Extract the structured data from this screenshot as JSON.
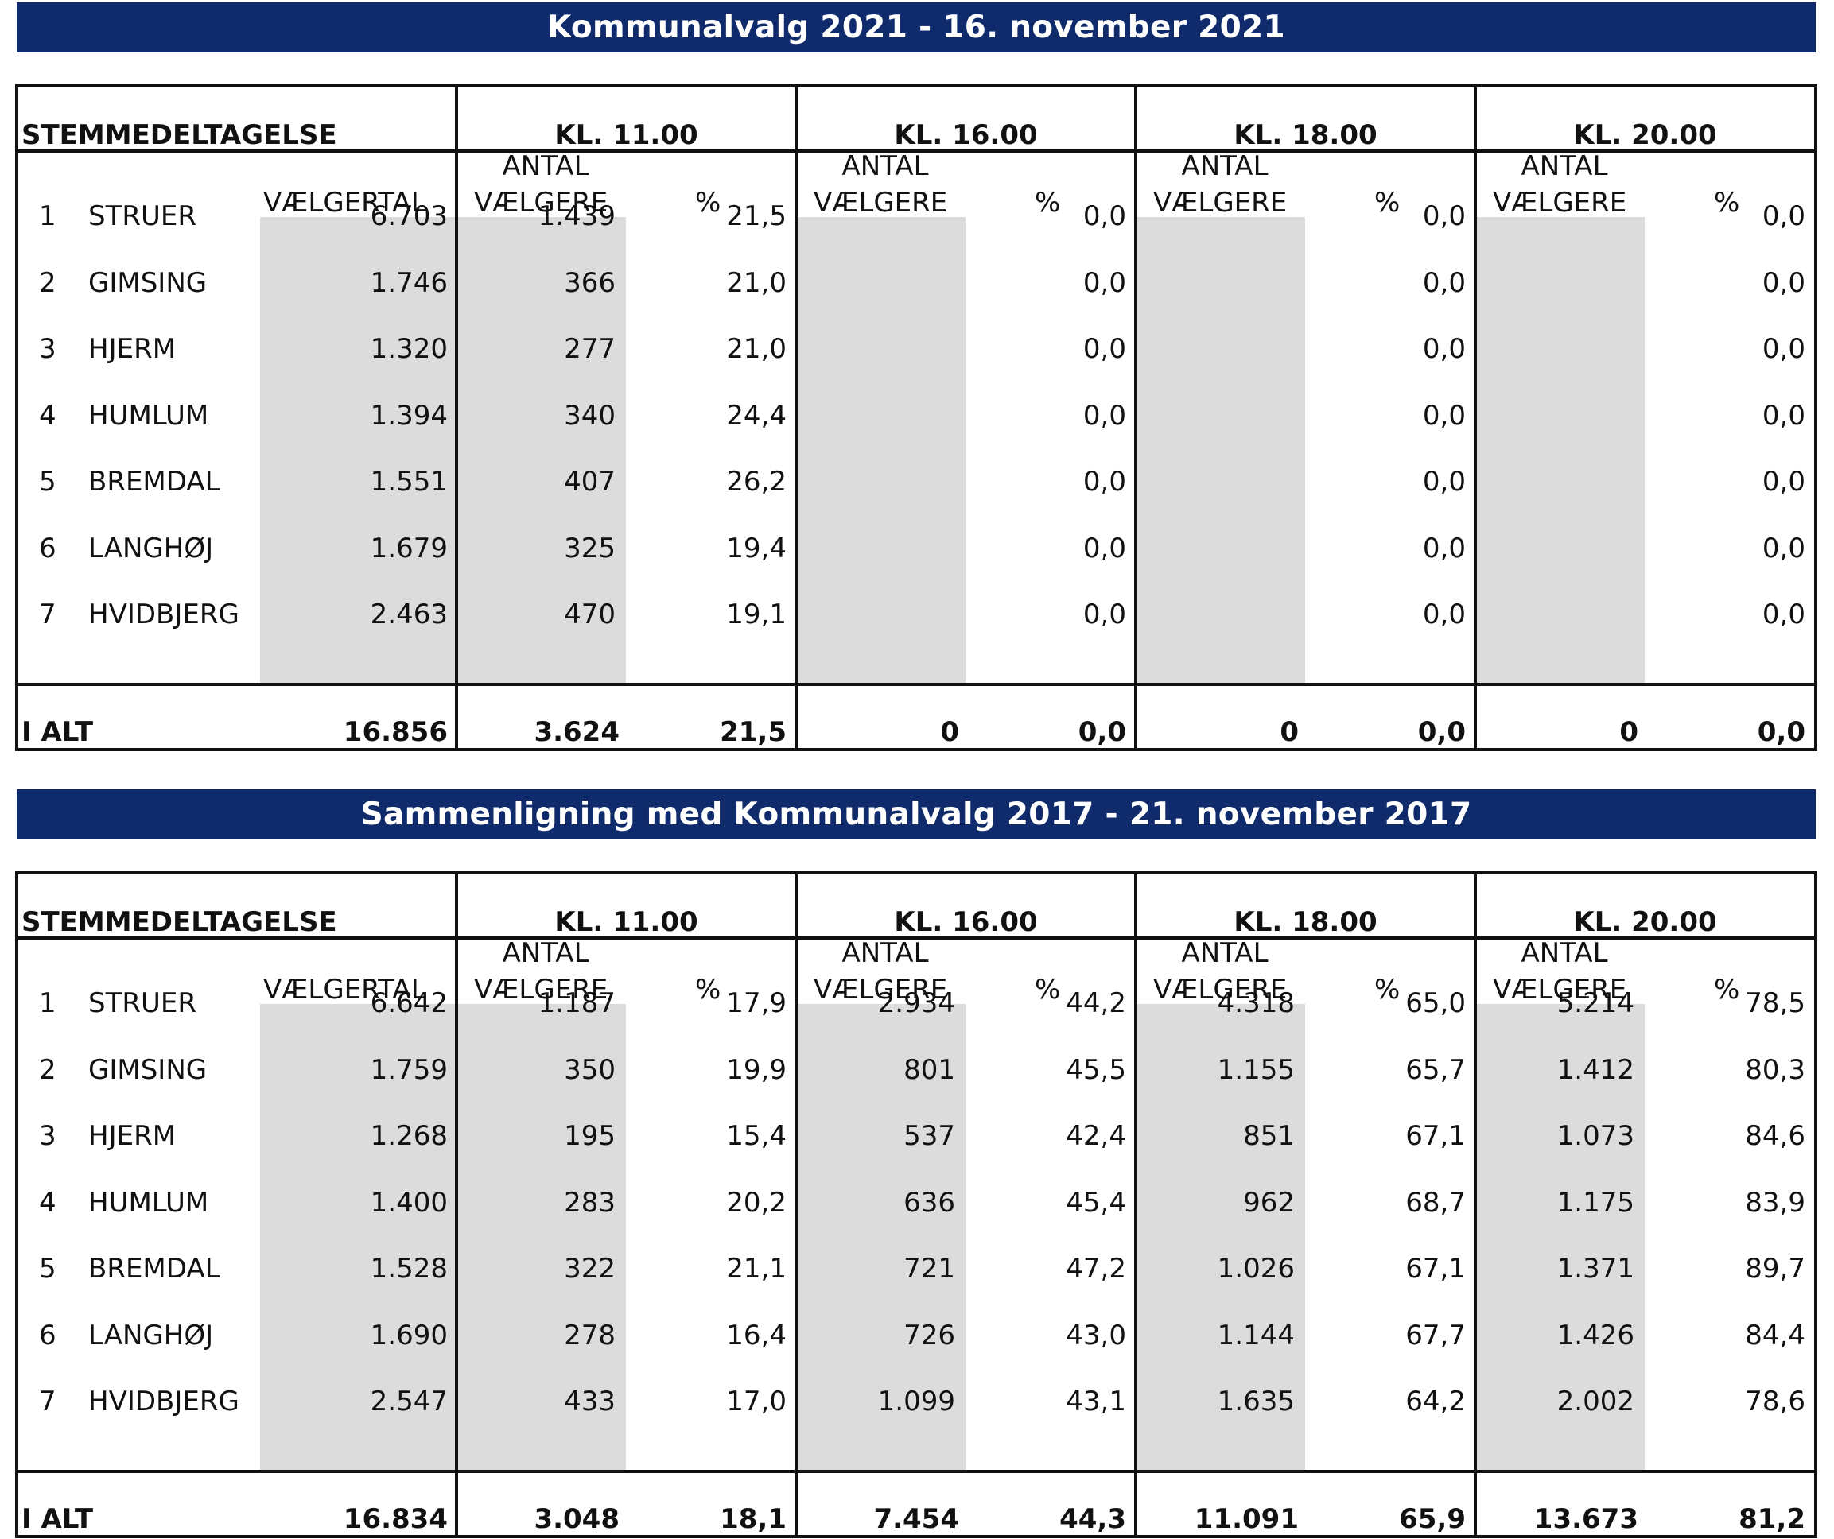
{
  "sections": [
    {
      "banner": "Kommunalvalg 2021 - 16. november 2021",
      "header": {
        "label": "STEMMEDELTAGELSE",
        "times": [
          "KL. 11.00",
          "KL. 16.00",
          "KL. 18.00",
          "KL. 20.00"
        ],
        "antal": "ANTAL",
        "vaelgere": "VÆLGERE",
        "pct": "%",
        "vaelgertal": "VÆLGERTAL"
      },
      "rows": [
        {
          "num": "1",
          "name": "STRUER",
          "vt": "6.703",
          "cols": [
            [
              "1.439",
              "21,5"
            ],
            [
              "",
              "0,0"
            ],
            [
              "",
              "0,0"
            ],
            [
              "",
              "0,0"
            ]
          ]
        },
        {
          "num": "2",
          "name": "GIMSING",
          "vt": "1.746",
          "cols": [
            [
              "366",
              "21,0"
            ],
            [
              "",
              "0,0"
            ],
            [
              "",
              "0,0"
            ],
            [
              "",
              "0,0"
            ]
          ]
        },
        {
          "num": "3",
          "name": "HJERM",
          "vt": "1.320",
          "cols": [
            [
              "277",
              "21,0"
            ],
            [
              "",
              "0,0"
            ],
            [
              "",
              "0,0"
            ],
            [
              "",
              "0,0"
            ]
          ]
        },
        {
          "num": "4",
          "name": "HUMLUM",
          "vt": "1.394",
          "cols": [
            [
              "340",
              "24,4"
            ],
            [
              "",
              "0,0"
            ],
            [
              "",
              "0,0"
            ],
            [
              "",
              "0,0"
            ]
          ]
        },
        {
          "num": "5",
          "name": "BREMDAL",
          "vt": "1.551",
          "cols": [
            [
              "407",
              "26,2"
            ],
            [
              "",
              "0,0"
            ],
            [
              "",
              "0,0"
            ],
            [
              "",
              "0,0"
            ]
          ]
        },
        {
          "num": "6",
          "name": "LANGHØJ",
          "vt": "1.679",
          "cols": [
            [
              "325",
              "19,4"
            ],
            [
              "",
              "0,0"
            ],
            [
              "",
              "0,0"
            ],
            [
              "",
              "0,0"
            ]
          ]
        },
        {
          "num": "7",
          "name": "HVIDBJERG",
          "vt": "2.463",
          "cols": [
            [
              "470",
              "19,1"
            ],
            [
              "",
              "0,0"
            ],
            [
              "",
              "0,0"
            ],
            [
              "",
              "0,0"
            ]
          ]
        }
      ],
      "total": {
        "label": "I ALT",
        "vt": "16.856",
        "cols": [
          [
            "3.624",
            "21,5"
          ],
          [
            "0",
            "0,0"
          ],
          [
            "0",
            "0,0"
          ],
          [
            "0",
            "0,0"
          ]
        ]
      }
    },
    {
      "banner": "Sammenligning med Kommunalvalg 2017 - 21. november 2017",
      "header": {
        "label": "STEMMEDELTAGELSE",
        "times": [
          "KL. 11.00",
          "KL. 16.00",
          "KL. 18.00",
          "KL. 20.00"
        ],
        "antal": "ANTAL",
        "vaelgere": "VÆLGERE",
        "pct": "%",
        "vaelgertal": "VÆLGERTAL"
      },
      "rows": [
        {
          "num": "1",
          "name": "STRUER",
          "vt": "6.642",
          "cols": [
            [
              "1.187",
              "17,9"
            ],
            [
              "2.934",
              "44,2"
            ],
            [
              "4.318",
              "65,0"
            ],
            [
              "5.214",
              "78,5"
            ]
          ]
        },
        {
          "num": "2",
          "name": "GIMSING",
          "vt": "1.759",
          "cols": [
            [
              "350",
              "19,9"
            ],
            [
              "801",
              "45,5"
            ],
            [
              "1.155",
              "65,7"
            ],
            [
              "1.412",
              "80,3"
            ]
          ]
        },
        {
          "num": "3",
          "name": "HJERM",
          "vt": "1.268",
          "cols": [
            [
              "195",
              "15,4"
            ],
            [
              "537",
              "42,4"
            ],
            [
              "851",
              "67,1"
            ],
            [
              "1.073",
              "84,6"
            ]
          ]
        },
        {
          "num": "4",
          "name": "HUMLUM",
          "vt": "1.400",
          "cols": [
            [
              "283",
              "20,2"
            ],
            [
              "636",
              "45,4"
            ],
            [
              "962",
              "68,7"
            ],
            [
              "1.175",
              "83,9"
            ]
          ]
        },
        {
          "num": "5",
          "name": "BREMDAL",
          "vt": "1.528",
          "cols": [
            [
              "322",
              "21,1"
            ],
            [
              "721",
              "47,2"
            ],
            [
              "1.026",
              "67,1"
            ],
            [
              "1.371",
              "89,7"
            ]
          ]
        },
        {
          "num": "6",
          "name": "LANGHØJ",
          "vt": "1.690",
          "cols": [
            [
              "278",
              "16,4"
            ],
            [
              "726",
              "43,0"
            ],
            [
              "1.144",
              "67,7"
            ],
            [
              "1.426",
              "84,4"
            ]
          ]
        },
        {
          "num": "7",
          "name": "HVIDBJERG",
          "vt": "2.547",
          "cols": [
            [
              "433",
              "17,0"
            ],
            [
              "1.099",
              "43,1"
            ],
            [
              "1.635",
              "64,2"
            ],
            [
              "2.002",
              "78,6"
            ]
          ]
        }
      ],
      "total": {
        "label": "I ALT",
        "vt": "16.834",
        "cols": [
          [
            "3.048",
            "18,1"
          ],
          [
            "7.454",
            "44,3"
          ],
          [
            "11.091",
            "65,9"
          ],
          [
            "13.673",
            "81,2"
          ]
        ]
      }
    }
  ]
}
